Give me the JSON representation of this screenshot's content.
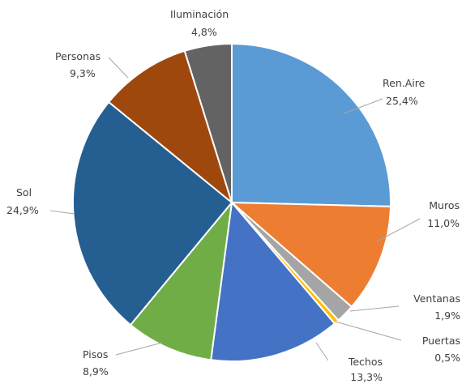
{
  "chart_data": {
    "type": "pie",
    "slices": [
      {
        "name": "Ren.Aire",
        "value": 25.4,
        "label": "25,4%",
        "color": "#5b9bd5"
      },
      {
        "name": "Muros",
        "value": 11.0,
        "label": "11,0%",
        "color": "#ed7d31"
      },
      {
        "name": "Ventanas",
        "value": 1.9,
        "label": "1,9%",
        "color": "#a5a5a5"
      },
      {
        "name": "Puertas",
        "value": 0.5,
        "label": "0,5%",
        "color": "#ffc000"
      },
      {
        "name": "Techos",
        "value": 13.3,
        "label": "13,3%",
        "color": "#4472c4"
      },
      {
        "name": "Pisos",
        "value": 8.9,
        "label": "8,9%",
        "color": "#70ad47"
      },
      {
        "name": "Sol",
        "value": 24.9,
        "label": "24,9%",
        "color": "#255e91"
      },
      {
        "name": "Personas",
        "value": 9.3,
        "label": "9,3%",
        "color": "#9e480e"
      },
      {
        "name": "Iluminación",
        "value": 4.8,
        "label": "4,8%",
        "color": "#636363"
      }
    ],
    "start_angle": "12 o'clock",
    "direction": "clockwise",
    "legend": "none",
    "data_labels": "outside with leader lines"
  }
}
